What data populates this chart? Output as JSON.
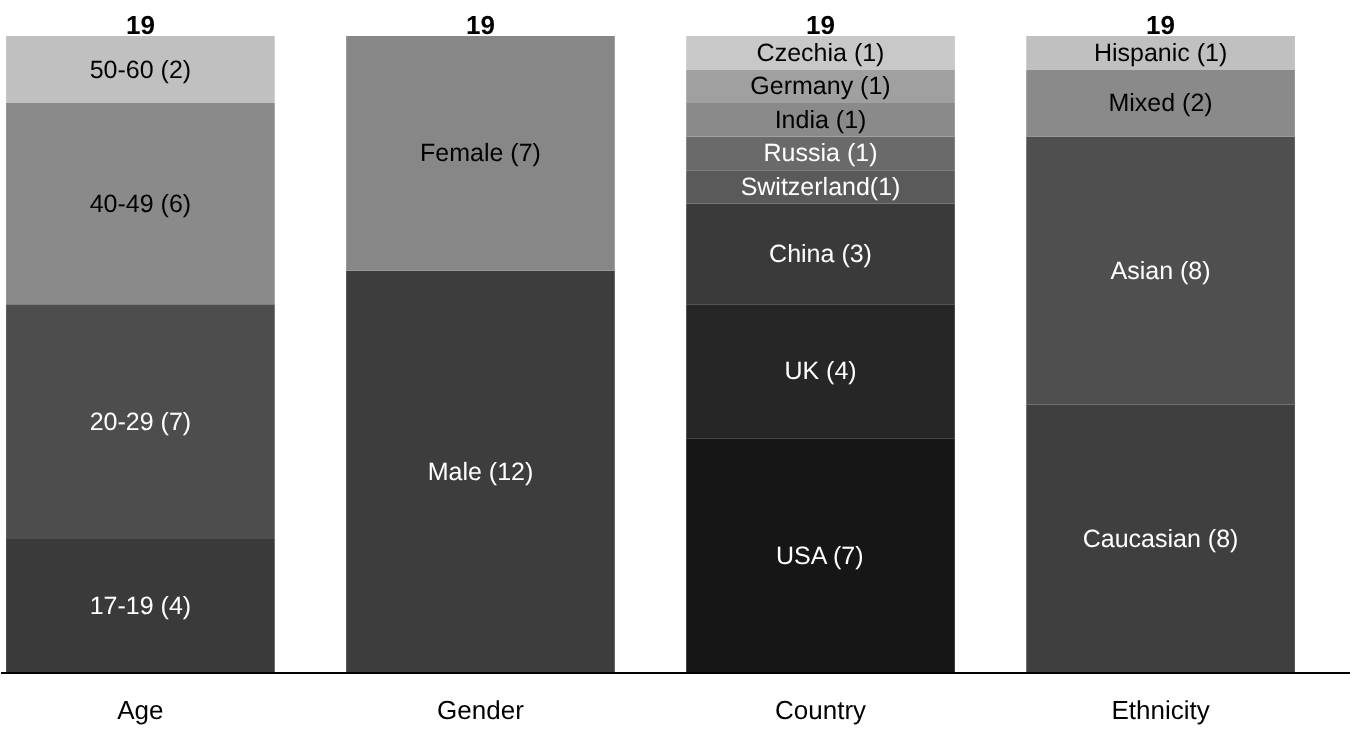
{
  "chart_data": {
    "type": "bar",
    "stacked": true,
    "categories": [
      "Age",
      "Gender",
      "Country",
      "Ethnicity"
    ],
    "grid": false,
    "tick_labels": "x",
    "totals": [
      "19",
      "19",
      "19",
      "19"
    ],
    "series": [
      {
        "values": [
          4,
          12,
          7,
          8
        ],
        "colors": [
          "#3a3a3a",
          "#3d3d3d",
          "#161616",
          "#3f3f3f"
        ],
        "value_labels": [
          "17-19 (4)",
          "Male (12)",
          "USA (7)",
          "Caucasian (8)"
        ]
      },
      {
        "values": [
          7,
          7,
          4,
          8
        ],
        "colors": [
          "#4d4d4d",
          "#878787",
          "#262626",
          "#4f4f4f"
        ],
        "value_labels": [
          "20-29 (7)",
          "Female (7)",
          "UK (4)",
          "Asian (8)"
        ]
      },
      {
        "values": [
          6,
          null,
          3,
          2
        ],
        "colors": [
          "#8a8a8a",
          null,
          "#3a3a3a",
          "#8a8a8a"
        ],
        "value_labels": [
          "40-49 (6)",
          null,
          "China (3)",
          "Mixed (2)"
        ]
      },
      {
        "values": [
          2,
          null,
          1,
          1
        ],
        "colors": [
          "#c0c0c0",
          null,
          "#5a5a5a",
          "#c0c0c0"
        ],
        "value_labels": [
          "50-60 (2)",
          null,
          "Switzerland(1)",
          "Hispanic (1)"
        ]
      },
      {
        "values": [
          null,
          null,
          1,
          null
        ],
        "colors": [
          null,
          null,
          "#6a6a6a",
          null
        ],
        "value_labels": [
          null,
          null,
          "Russia (1)",
          null
        ]
      },
      {
        "values": [
          null,
          null,
          1,
          null
        ],
        "colors": [
          null,
          null,
          "#8a8a8a",
          null
        ],
        "value_labels": [
          null,
          null,
          "India (1)",
          null
        ]
      },
      {
        "values": [
          null,
          null,
          1,
          null
        ],
        "colors": [
          null,
          null,
          "#a0a0a0",
          null
        ],
        "value_labels": [
          null,
          null,
          "Germany (1)",
          null
        ]
      },
      {
        "values": [
          null,
          null,
          1,
          null
        ],
        "colors": [
          null,
          null,
          "#c8c8c8",
          null
        ],
        "value_labels": [
          null,
          null,
          "Czechia (1)",
          null
        ]
      }
    ]
  }
}
